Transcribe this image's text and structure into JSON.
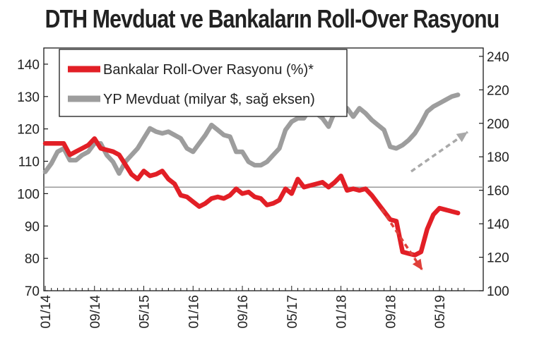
{
  "chart_data": {
    "type": "line",
    "title": "DTH Mevduat ve Bankaların Roll-Over Rasyonu",
    "legend_position": "top-left",
    "colors": {
      "roll_over": "#e21f26",
      "yp_mevduat": "#9d9d9d",
      "arrow_red": "#e0403a",
      "arrow_gray": "#a9a9a9"
    },
    "x_ticks": [
      "01/14",
      "09/14",
      "05/15",
      "01/16",
      "09/16",
      "05/17",
      "01/18",
      "09/18",
      "05/19"
    ],
    "y_left": {
      "ticks": [
        "70",
        "80",
        "90",
        "100",
        "110",
        "120",
        "130",
        "140"
      ],
      "range": [
        70,
        145
      ]
    },
    "y_right": {
      "ticks": [
        "100",
        "120",
        "140",
        "160",
        "180",
        "200",
        "220",
        "240"
      ],
      "range": [
        100,
        245
      ]
    },
    "reference_line_left": 102,
    "series": [
      {
        "name": "Bankalar Roll-Over Rasyonu (%)*",
        "axis": "left",
        "points": [
          [
            "2014-01",
            115.5
          ],
          [
            "2014-03",
            115.5
          ],
          [
            "2014-04",
            115.5
          ],
          [
            "2014-05",
            112
          ],
          [
            "2014-06",
            113
          ],
          [
            "2014-07",
            114
          ],
          [
            "2014-08",
            115
          ],
          [
            "2014-09",
            117
          ],
          [
            "2014-10",
            114
          ],
          [
            "2014-11",
            113.5
          ],
          [
            "2014-12",
            113
          ],
          [
            "2015-01",
            112
          ],
          [
            "2015-02",
            109
          ],
          [
            "2015-03",
            106
          ],
          [
            "2015-04",
            104.5
          ],
          [
            "2015-05",
            107
          ],
          [
            "2015-06",
            105.5
          ],
          [
            "2015-07",
            106
          ],
          [
            "2015-08",
            107
          ],
          [
            "2015-09",
            104.5
          ],
          [
            "2015-10",
            103
          ],
          [
            "2015-11",
            99.5
          ],
          [
            "2015-12",
            99
          ],
          [
            "2016-01",
            97.5
          ],
          [
            "2016-02",
            96
          ],
          [
            "2016-03",
            97
          ],
          [
            "2016-04",
            98.5
          ],
          [
            "2016-05",
            99
          ],
          [
            "2016-06",
            98.5
          ],
          [
            "2016-07",
            99.5
          ],
          [
            "2016-08",
            101.5
          ],
          [
            "2016-09",
            100
          ],
          [
            "2016-10",
            100.5
          ],
          [
            "2016-11",
            99
          ],
          [
            "2016-12",
            98.5
          ],
          [
            "2017-01",
            96.5
          ],
          [
            "2017-02",
            97
          ],
          [
            "2017-03",
            98
          ],
          [
            "2017-04",
            101.5
          ],
          [
            "2017-05",
            100
          ],
          [
            "2017-06",
            104.5
          ],
          [
            "2017-07",
            102
          ],
          [
            "2017-08",
            102.5
          ],
          [
            "2017-09",
            103
          ],
          [
            "2017-10",
            103.5
          ],
          [
            "2017-11",
            102
          ],
          [
            "2017-12",
            103.5
          ],
          [
            "2018-01",
            105.5
          ],
          [
            "2018-02",
            101
          ],
          [
            "2018-03",
            101.5
          ],
          [
            "2018-04",
            101
          ],
          [
            "2018-05",
            101.5
          ],
          [
            "2018-06",
            99.5
          ],
          [
            "2018-07",
            97
          ],
          [
            "2018-08",
            94.5
          ],
          [
            "2018-09",
            92
          ],
          [
            "2018-10",
            91.5
          ],
          [
            "2018-11",
            82
          ],
          [
            "2018-12",
            81.5
          ],
          [
            "2019-01",
            81
          ],
          [
            "2019-02",
            82
          ],
          [
            "2019-03",
            89
          ],
          [
            "2019-04",
            93.5
          ],
          [
            "2019-05",
            95.5
          ],
          [
            "2019-06",
            95
          ],
          [
            "2019-07",
            94.5
          ],
          [
            "2019-08",
            94
          ]
        ]
      },
      {
        "name": "YP Mevduat (milyar $, sağ eksen)",
        "axis": "right",
        "points": [
          [
            "2014-01",
            171
          ],
          [
            "2014-02",
            176
          ],
          [
            "2014-03",
            183
          ],
          [
            "2014-04",
            185
          ],
          [
            "2014-05",
            178
          ],
          [
            "2014-06",
            178
          ],
          [
            "2014-07",
            181
          ],
          [
            "2014-08",
            183
          ],
          [
            "2014-09",
            188
          ],
          [
            "2014-10",
            188
          ],
          [
            "2014-11",
            181
          ],
          [
            "2014-12",
            177
          ],
          [
            "2015-01",
            170
          ],
          [
            "2015-02",
            177
          ],
          [
            "2015-03",
            181
          ],
          [
            "2015-04",
            185
          ],
          [
            "2015-05",
            191
          ],
          [
            "2015-06",
            197
          ],
          [
            "2015-07",
            195
          ],
          [
            "2015-08",
            194
          ],
          [
            "2015-09",
            195
          ],
          [
            "2015-10",
            193
          ],
          [
            "2015-11",
            191
          ],
          [
            "2015-12",
            185
          ],
          [
            "2016-01",
            183
          ],
          [
            "2016-02",
            188
          ],
          [
            "2016-03",
            193
          ],
          [
            "2016-04",
            199
          ],
          [
            "2016-05",
            196
          ],
          [
            "2016-06",
            193
          ],
          [
            "2016-07",
            192
          ],
          [
            "2016-08",
            183
          ],
          [
            "2016-09",
            183
          ],
          [
            "2016-10",
            177
          ],
          [
            "2016-11",
            175
          ],
          [
            "2016-12",
            175
          ],
          [
            "2017-01",
            177
          ],
          [
            "2017-02",
            181
          ],
          [
            "2017-03",
            185
          ],
          [
            "2017-04",
            196
          ],
          [
            "2017-05",
            201
          ],
          [
            "2017-06",
            203
          ],
          [
            "2017-07",
            203
          ],
          [
            "2017-08",
            209
          ],
          [
            "2017-09",
            206
          ],
          [
            "2017-10",
            203
          ],
          [
            "2017-11",
            198
          ],
          [
            "2017-12",
            207
          ],
          [
            "2018-01",
            209
          ],
          [
            "2018-02",
            209
          ],
          [
            "2018-03",
            204
          ],
          [
            "2018-04",
            209
          ],
          [
            "2018-05",
            206
          ],
          [
            "2018-06",
            202
          ],
          [
            "2018-07",
            199
          ],
          [
            "2018-08",
            196
          ],
          [
            "2018-09",
            186
          ],
          [
            "2018-10",
            185
          ],
          [
            "2018-11",
            187
          ],
          [
            "2018-12",
            190
          ],
          [
            "2019-01",
            194
          ],
          [
            "2019-02",
            200
          ],
          [
            "2019-03",
            207
          ],
          [
            "2019-04",
            210
          ],
          [
            "2019-05",
            212
          ],
          [
            "2019-06",
            214
          ],
          [
            "2019-07",
            216
          ],
          [
            "2019-08",
            217
          ]
        ]
      }
    ]
  }
}
